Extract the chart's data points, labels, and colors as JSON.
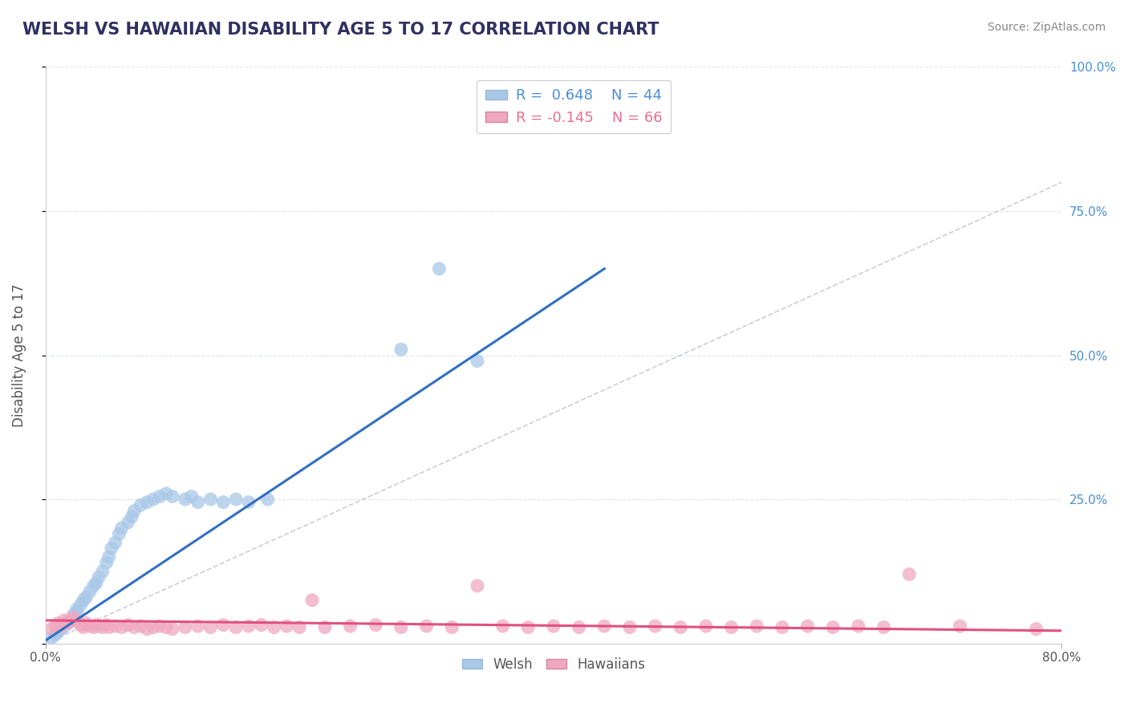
{
  "title": "WELSH VS HAWAIIAN DISABILITY AGE 5 TO 17 CORRELATION CHART",
  "source": "Source: ZipAtlas.com",
  "ylabel": "Disability Age 5 to 17",
  "xlim": [
    0.0,
    0.8
  ],
  "ylim": [
    0.0,
    1.0
  ],
  "welsh_R": 0.648,
  "welsh_N": 44,
  "hawaiian_R": -0.145,
  "hawaiian_N": 66,
  "welsh_color": "#a8c8e8",
  "hawaiian_color": "#f0a8c0",
  "welsh_line_color": "#3070c0",
  "hawaiian_line_color": "#e05080",
  "ref_line_color": "#b8b8c8",
  "background_color": "#ffffff",
  "grid_color": "#dde4f0",
  "title_color": "#303060",
  "welsh_x": [
    0.005,
    0.008,
    0.01,
    0.012,
    0.015,
    0.018,
    0.02,
    0.022,
    0.025,
    0.025,
    0.028,
    0.03,
    0.032,
    0.035,
    0.038,
    0.04,
    0.042,
    0.045,
    0.048,
    0.05,
    0.052,
    0.055,
    0.058,
    0.06,
    0.065,
    0.068,
    0.07,
    0.075,
    0.08,
    0.085,
    0.09,
    0.095,
    0.1,
    0.11,
    0.115,
    0.12,
    0.13,
    0.14,
    0.15,
    0.16,
    0.175,
    0.28,
    0.31,
    0.34
  ],
  "welsh_y": [
    0.01,
    0.015,
    0.02,
    0.025,
    0.03,
    0.038,
    0.04,
    0.05,
    0.055,
    0.06,
    0.068,
    0.075,
    0.08,
    0.09,
    0.1,
    0.105,
    0.115,
    0.125,
    0.14,
    0.15,
    0.165,
    0.175,
    0.19,
    0.2,
    0.21,
    0.22,
    0.23,
    0.24,
    0.245,
    0.25,
    0.255,
    0.26,
    0.255,
    0.25,
    0.255,
    0.245,
    0.25,
    0.245,
    0.25,
    0.245,
    0.25,
    0.51,
    0.65,
    0.49
  ],
  "hawaiian_x": [
    0.005,
    0.008,
    0.01,
    0.012,
    0.015,
    0.018,
    0.02,
    0.022,
    0.025,
    0.028,
    0.03,
    0.032,
    0.035,
    0.038,
    0.04,
    0.042,
    0.045,
    0.048,
    0.05,
    0.055,
    0.06,
    0.065,
    0.07,
    0.075,
    0.08,
    0.085,
    0.09,
    0.095,
    0.1,
    0.11,
    0.12,
    0.13,
    0.14,
    0.15,
    0.16,
    0.17,
    0.18,
    0.19,
    0.2,
    0.21,
    0.22,
    0.24,
    0.26,
    0.28,
    0.3,
    0.32,
    0.34,
    0.36,
    0.38,
    0.4,
    0.42,
    0.44,
    0.46,
    0.48,
    0.5,
    0.52,
    0.54,
    0.56,
    0.58,
    0.6,
    0.62,
    0.64,
    0.66,
    0.68,
    0.72,
    0.78
  ],
  "hawaiian_y": [
    0.025,
    0.03,
    0.035,
    0.03,
    0.04,
    0.035,
    0.04,
    0.045,
    0.038,
    0.032,
    0.028,
    0.035,
    0.03,
    0.028,
    0.032,
    0.03,
    0.028,
    0.032,
    0.028,
    0.03,
    0.028,
    0.032,
    0.028,
    0.03,
    0.025,
    0.028,
    0.03,
    0.028,
    0.025,
    0.028,
    0.03,
    0.028,
    0.032,
    0.028,
    0.03,
    0.032,
    0.028,
    0.03,
    0.028,
    0.075,
    0.028,
    0.03,
    0.032,
    0.028,
    0.03,
    0.028,
    0.1,
    0.03,
    0.028,
    0.03,
    0.028,
    0.03,
    0.028,
    0.03,
    0.028,
    0.03,
    0.028,
    0.03,
    0.028,
    0.03,
    0.028,
    0.03,
    0.028,
    0.12,
    0.03,
    0.025
  ],
  "welsh_line_x": [
    0.0,
    0.44
  ],
  "welsh_line_y": [
    0.005,
    0.65
  ],
  "hawaiian_line_x": [
    0.0,
    0.8
  ],
  "hawaiian_line_y": [
    0.04,
    0.022
  ]
}
